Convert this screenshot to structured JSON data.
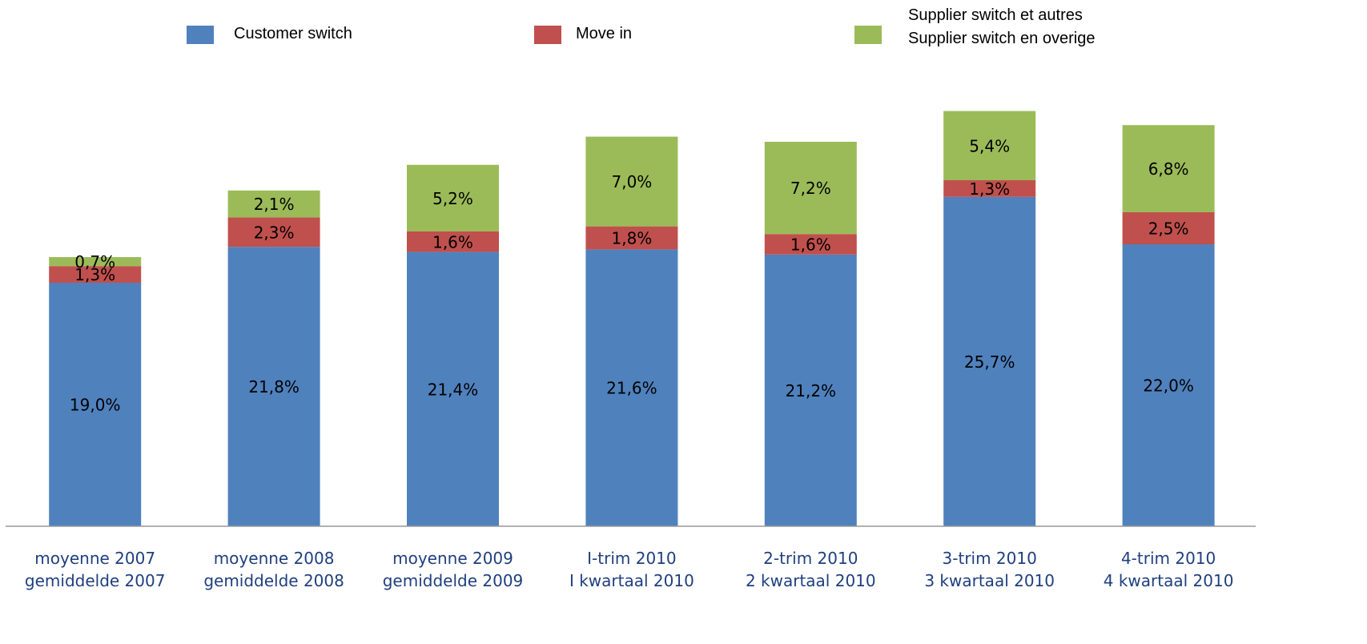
{
  "chart_data": {
    "type": "stacked_bar",
    "categories": [
      "moyenne 2007\ngemiddelde 2007",
      "moyenne 2008\ngemiddelde 2008",
      "moyenne 2009\ngemiddelde 2009",
      "I-trim 2010\nI kwartaal 2010",
      "2-trim 2010\n2 kwartaal 2010",
      "3-trim 2010\n3 kwartaal 2010",
      "4-trim 2010\n4 kwartaal 2010"
    ],
    "series": [
      {
        "name": "Customer switch",
        "color": "#4f81bd",
        "values": [
          19.0,
          21.8,
          21.4,
          21.6,
          21.2,
          25.7,
          22.0
        ],
        "value_labels": [
          "19,0%",
          "21,8%",
          "21,4%",
          "21,6%",
          "21,2%",
          "25,7%",
          "22,0%"
        ]
      },
      {
        "name": "Move in",
        "color": "#c0504d",
        "values": [
          1.3,
          2.3,
          1.6,
          1.8,
          1.6,
          1.3,
          2.5
        ],
        "value_labels": [
          "1,3%",
          "2,3%",
          "1,6%",
          "1,8%",
          "1,6%",
          "1,3%",
          "2,5%"
        ]
      },
      {
        "name": "Supplier switch et autres\nSupplier switch en overige",
        "color": "#9bbb59",
        "values": [
          0.7,
          2.1,
          5.2,
          7.0,
          7.2,
          5.4,
          6.8
        ],
        "value_labels": [
          "0,7%",
          "2,1%",
          "5,2%",
          "7,0%",
          "7,2%",
          "5,4%",
          "6,8%"
        ]
      }
    ],
    "ylim": [
      0,
      35
    ]
  }
}
